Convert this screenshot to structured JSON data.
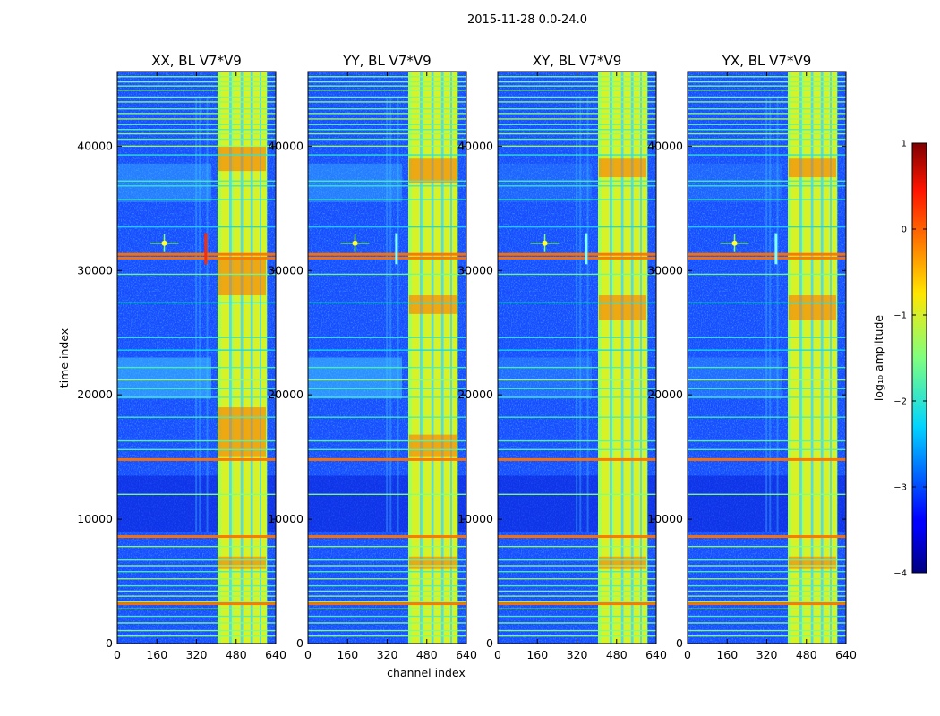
{
  "suptitle": "2015-11-28 0.0-24.0",
  "chart_data": {
    "type": "heatmap",
    "xlabel": "channel index",
    "ylabel": "time index",
    "xlim": [
      0,
      640
    ],
    "ylim": [
      0,
      46000
    ],
    "x_ticks": [
      "0",
      "160",
      "320",
      "480",
      "640"
    ],
    "y_ticks": [
      "0",
      "10000",
      "20000",
      "30000",
      "40000"
    ],
    "panels": [
      {
        "title": "XX, BL V7*V9"
      },
      {
        "title": "YY, BL V7*V9"
      },
      {
        "title": "XY, BL V7*V9"
      },
      {
        "title": "YX, BL V7*V9"
      }
    ],
    "colorbar": {
      "label": "log₁₀ amplitude",
      "range": [
        -4,
        1
      ],
      "ticks": [
        "1",
        "0",
        "−1",
        "−2",
        "−3",
        "−4"
      ],
      "colormap": "jet"
    }
  }
}
